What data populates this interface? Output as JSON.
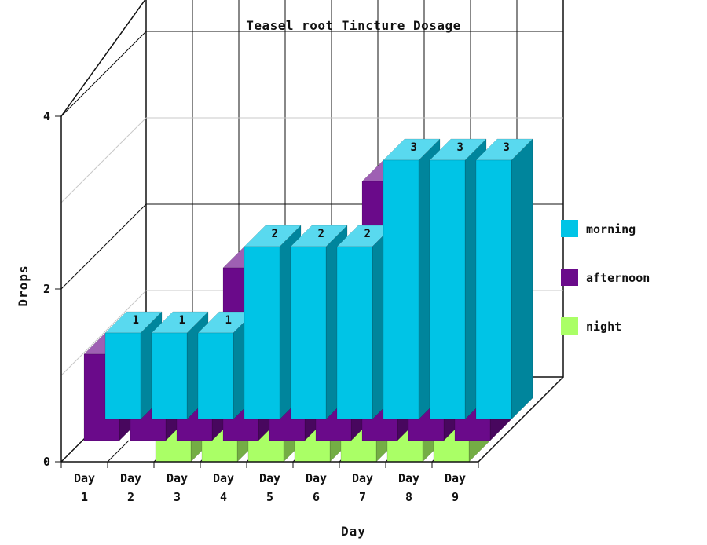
{
  "chart_data": {
    "type": "bar",
    "style": "3d-stacked-depth",
    "title": "Teasel root Tincture Dosage",
    "xlabel": "Day",
    "ylabel": "Drops",
    "ylim": [
      0,
      4
    ],
    "yticks": [
      "0",
      "2",
      "4"
    ],
    "categories": [
      [
        "Day",
        "1"
      ],
      [
        "Day",
        "2"
      ],
      [
        "Day",
        "3"
      ],
      [
        "Day",
        "4"
      ],
      [
        "Day",
        "5"
      ],
      [
        "Day",
        "6"
      ],
      [
        "Day",
        "7"
      ],
      [
        "Day",
        "8"
      ],
      [
        "Day",
        "9"
      ]
    ],
    "series": [
      {
        "name": "morning",
        "color": "#00c4e6",
        "values": [
          1,
          1,
          1,
          2,
          2,
          2,
          3,
          3,
          3
        ]
      },
      {
        "name": "afternoon",
        "color": "#6a0a8a",
        "values": [
          1,
          1,
          1,
          2,
          2,
          2,
          3,
          3,
          3
        ]
      },
      {
        "name": "night",
        "color": "#aaff66",
        "values": [
          null,
          null,
          1,
          1,
          1,
          2,
          2,
          2,
          3
        ]
      }
    ],
    "grid": true,
    "legend_position": "right"
  }
}
